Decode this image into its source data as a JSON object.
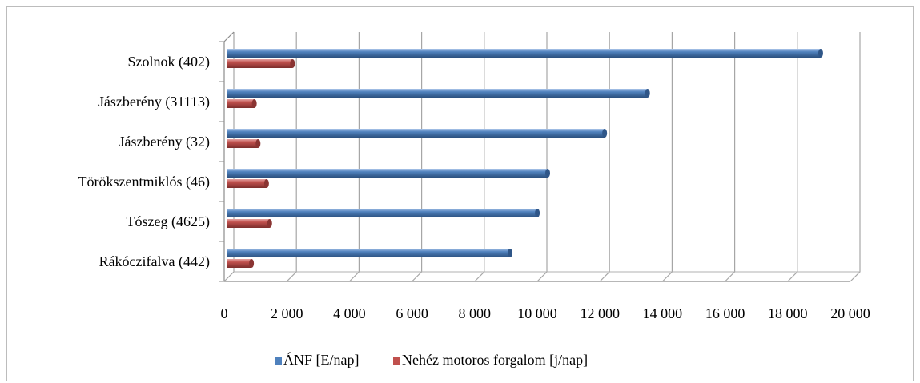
{
  "chart_data": {
    "type": "bar",
    "orientation": "horizontal",
    "style": "3d-clustered-cylinder",
    "categories": [
      "Szolnok (402)",
      "Jászberény (31113)",
      "Jászberény (32)",
      "Törökszentmiklós (46)",
      "Tószeg (4625)",
      "Rákóczifalva (442)"
    ],
    "series": [
      {
        "name": "ÁNF [E/nap]",
        "color": "#4f81bd",
        "values": [
          18950,
          13420,
          12050,
          10230,
          9900,
          9030
        ]
      },
      {
        "name": "Nehéz motoros forgalom [j/nap]",
        "color": "#c0504d",
        "values": [
          2080,
          860,
          980,
          1250,
          1350,
          770
        ]
      }
    ],
    "xlim": [
      0,
      20000
    ],
    "xticks": [
      0,
      2000,
      4000,
      6000,
      8000,
      10000,
      12000,
      14000,
      16000,
      18000,
      20000
    ],
    "xtick_labels": [
      "0",
      "2 000",
      "4 000",
      "6 000",
      "8 000",
      "10 000",
      "12 000",
      "14 000",
      "16 000",
      "18 000",
      "20 000"
    ],
    "grid": true,
    "legend_position": "bottom"
  }
}
